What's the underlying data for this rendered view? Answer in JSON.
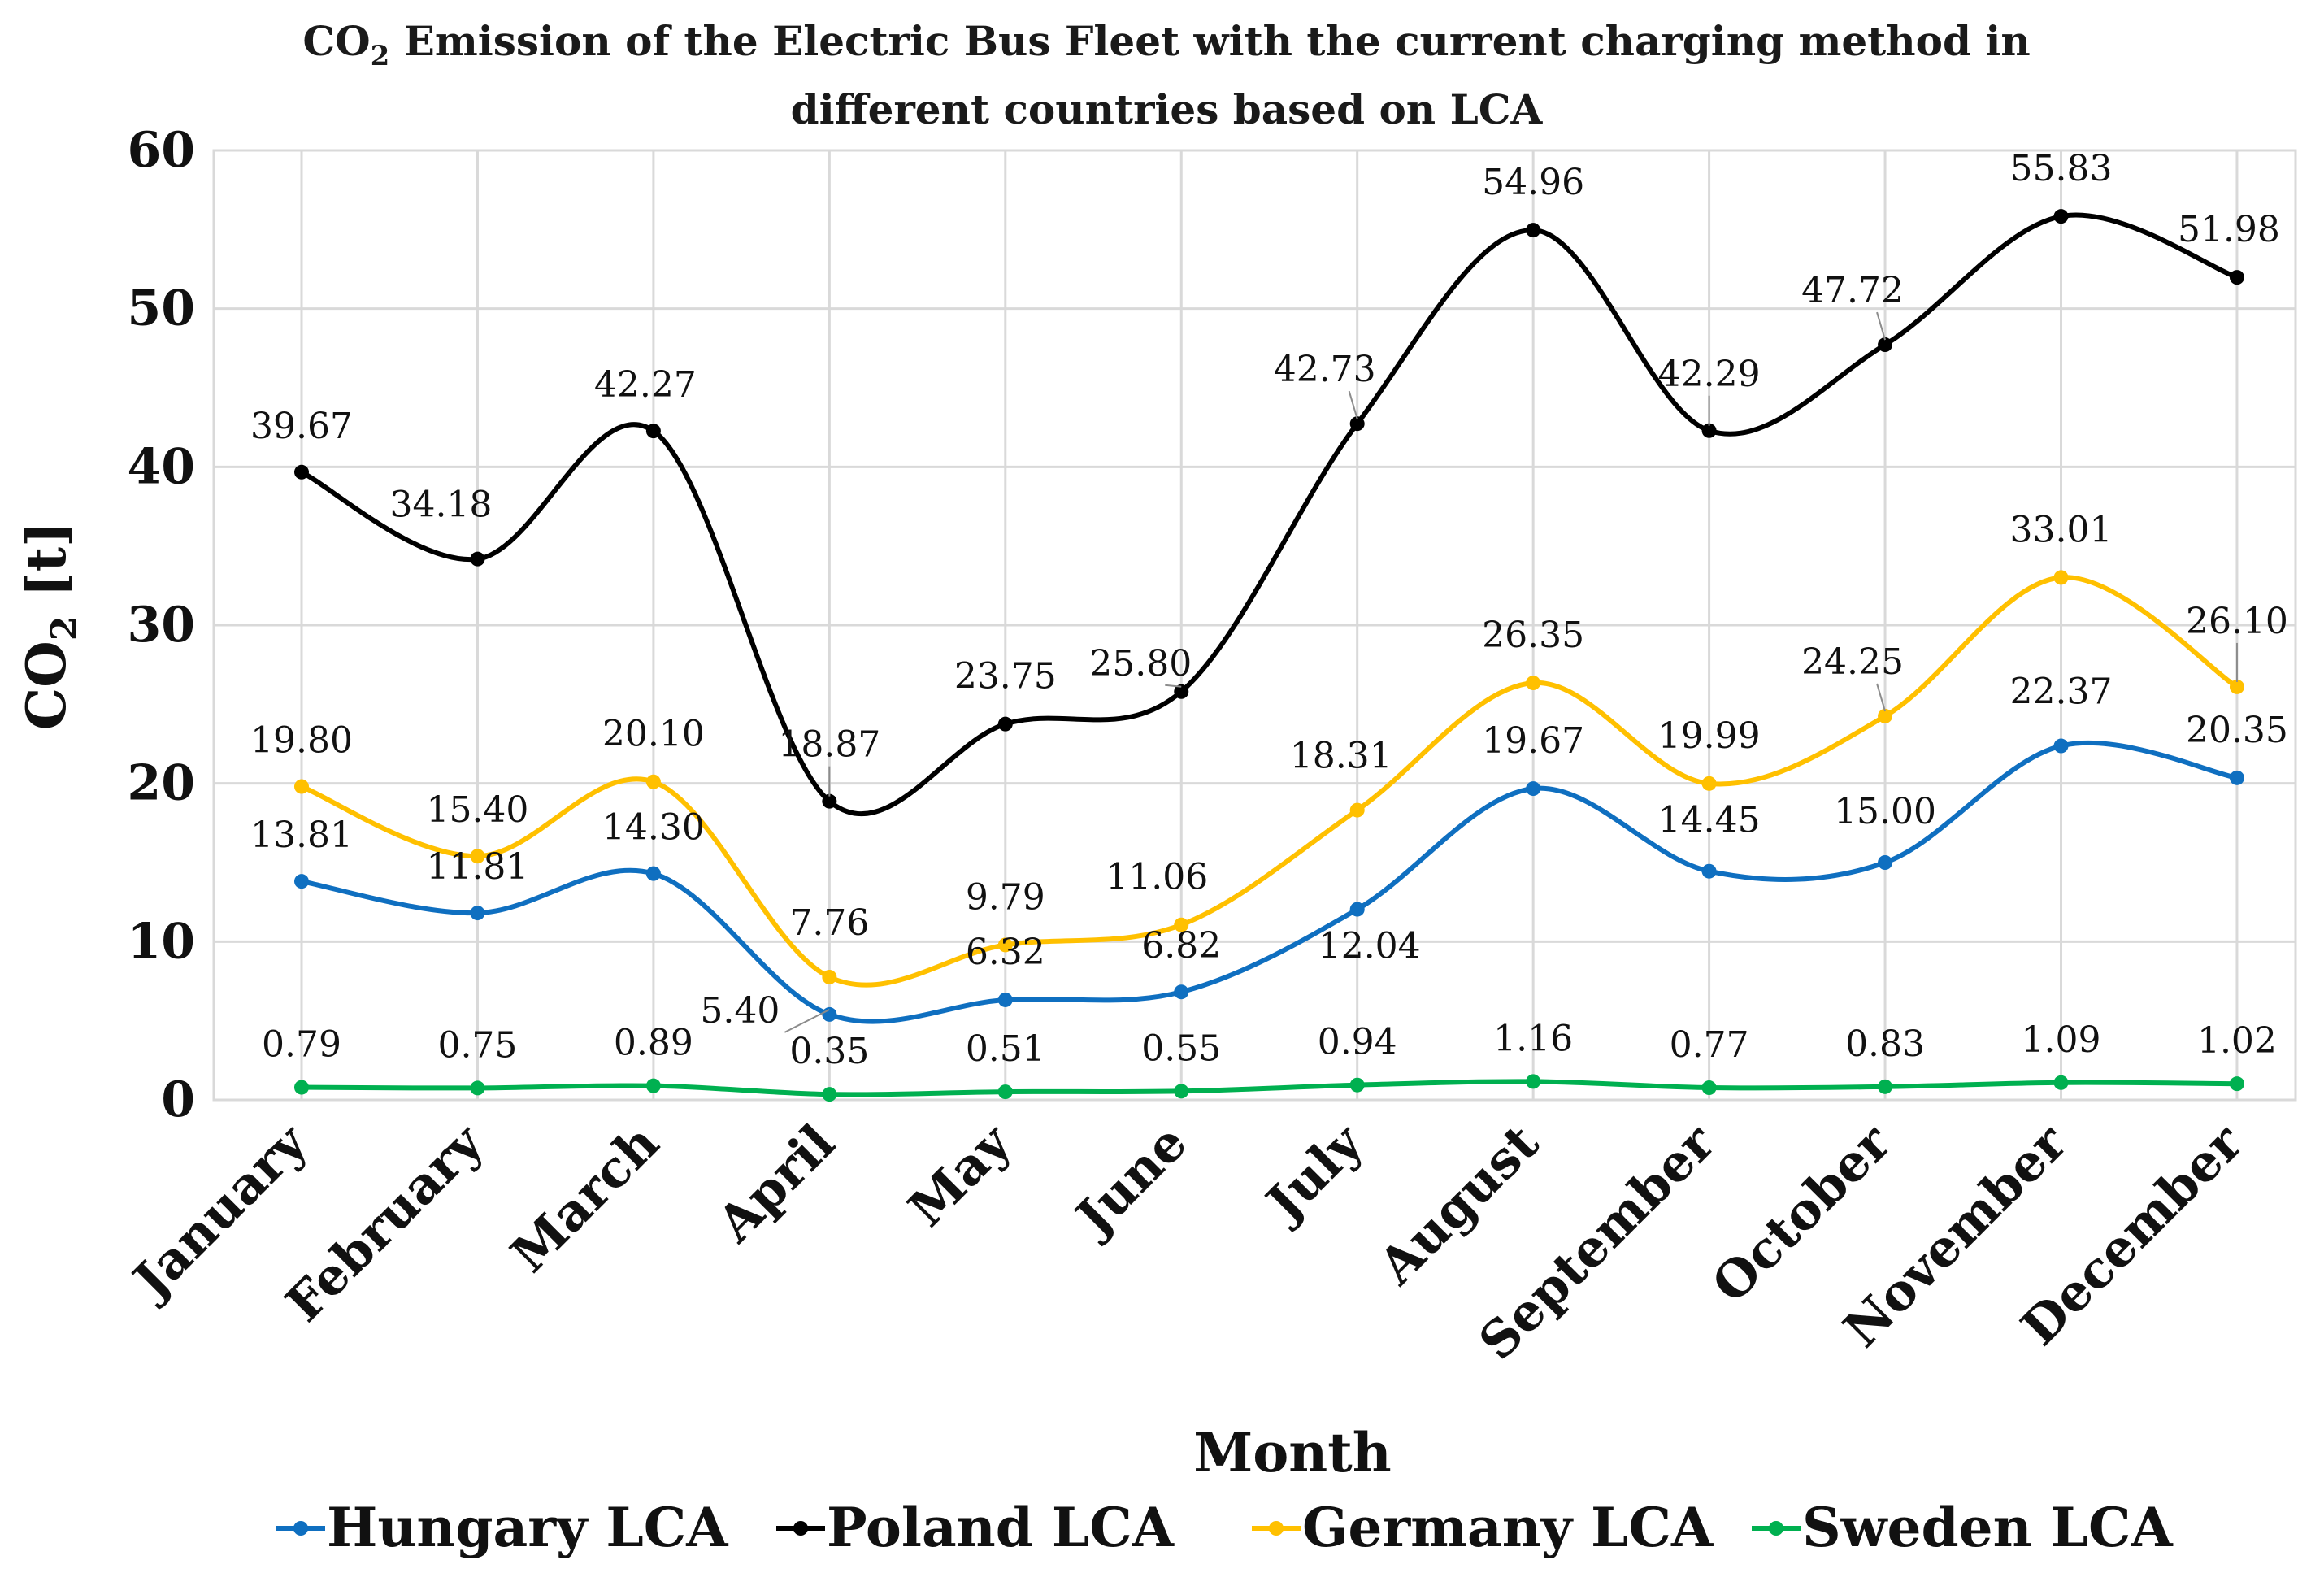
{
  "chart_data": {
    "type": "line",
    "title_lines": [
      [
        "CO",
        "2",
        " Emission of the Electric Bus Fleet with the current charging method in"
      ],
      [
        "different countries based on LCA"
      ]
    ],
    "xlabel": "Month",
    "ylabel_parts": [
      "CO",
      "2",
      " [t]"
    ],
    "ylim": [
      0,
      60
    ],
    "yticks": [
      0,
      10,
      20,
      30,
      40,
      50,
      60
    ],
    "ytick_labels": [
      "0",
      "10",
      "20",
      "30",
      "40",
      "50",
      "60"
    ],
    "grid": true,
    "legend_position": "bottom",
    "categories": [
      "January",
      "February",
      "March",
      "April",
      "May",
      "June",
      "July",
      "August",
      "September",
      "October",
      "November",
      "December"
    ],
    "series": [
      {
        "name": "Hungary LCA",
        "color": "#0F6FC0",
        "values": [
          13.81,
          11.81,
          14.3,
          5.4,
          6.32,
          6.82,
          12.04,
          19.67,
          14.45,
          15.0,
          22.37,
          20.35
        ],
        "labels": [
          "13.81",
          "11.81",
          "14.30",
          "5.40",
          "6.32",
          "6.82",
          "12.04",
          "19.67",
          "14.45",
          "15.00",
          "22.37",
          "20.35"
        ]
      },
      {
        "name": "Poland LCA",
        "color": "#000000",
        "values": [
          39.67,
          34.18,
          42.27,
          18.87,
          23.75,
          25.8,
          42.73,
          54.96,
          42.29,
          47.72,
          55.83,
          51.98
        ],
        "labels": [
          "39.67",
          "34.18",
          "42.27",
          "18.87",
          "23.75",
          "25.80",
          "42.73",
          "54.96",
          "42.29",
          "47.72",
          "55.83",
          "51.98"
        ]
      },
      {
        "name": "Germany LCA",
        "color": "#FFC000",
        "values": [
          19.8,
          15.4,
          20.1,
          7.76,
          9.79,
          11.06,
          18.31,
          26.35,
          19.99,
          24.25,
          33.01,
          26.1
        ],
        "labels": [
          "19.80",
          "15.40",
          "20.10",
          "7.76",
          "9.79",
          "11.06",
          "18.31",
          "26.35",
          "19.99",
          "24.25",
          "33.01",
          "26.10"
        ]
      },
      {
        "name": "Sweden LCA",
        "color": "#00B050",
        "values": [
          0.79,
          0.75,
          0.89,
          0.35,
          0.51,
          0.55,
          0.94,
          1.16,
          0.77,
          0.83,
          1.09,
          1.02
        ],
        "labels": [
          "0.79",
          "0.75",
          "0.89",
          "0.35",
          "0.51",
          "0.55",
          "0.94",
          "1.16",
          "0.77",
          "0.83",
          "1.09",
          "1.02"
        ]
      }
    ]
  }
}
